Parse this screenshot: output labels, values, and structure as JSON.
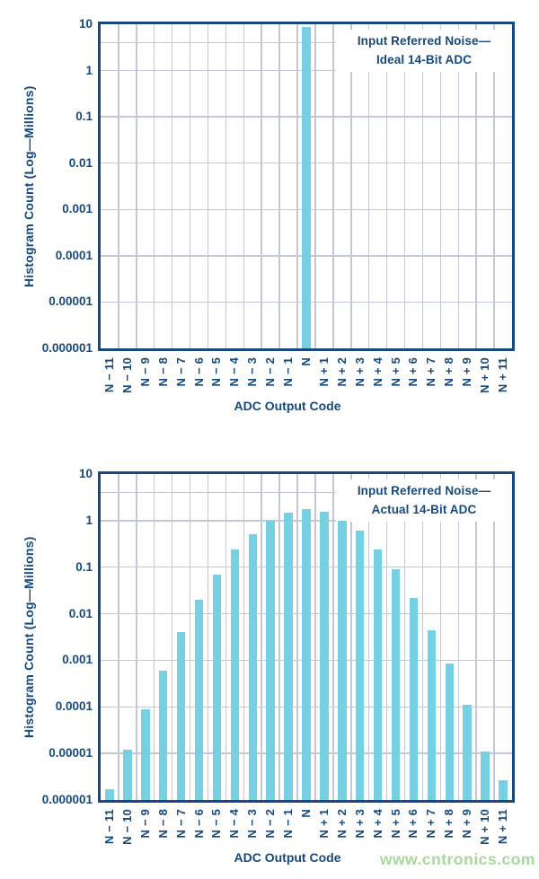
{
  "watermark": {
    "text": "www.cntronics.com",
    "color": "#a9d89b"
  },
  "colors": {
    "axis_navy": "#17497d",
    "grid": "#c3c7d9",
    "bar_cyan": "#76d0e1"
  },
  "chart_data": [
    {
      "type": "bar",
      "title_line1": "Input Referred Noise—",
      "title_line2": "Ideal 14-Bit ADC",
      "xlabel": "ADC Output Code",
      "ylabel": "Histogram Count (Log—Millions)",
      "yscale": "log",
      "ylim": [
        1e-06,
        10
      ],
      "ytick_labels": [
        "10",
        "1",
        "0.1",
        "0.01",
        "0.001",
        "0.0001",
        "0.00001",
        "0.000001"
      ],
      "extra_gridline_value": 4,
      "grid": "on",
      "legend": "none",
      "categories": [
        "N − 11",
        "N − 10",
        "N − 9",
        "N − 8",
        "N − 7",
        "N − 6",
        "N − 5",
        "N − 4",
        "N − 3",
        "N − 2",
        "N − 1",
        "N",
        "N + 1",
        "N + 2",
        "N + 3",
        "N + 4",
        "N + 5",
        "N + 6",
        "N + 7",
        "N + 8",
        "N + 9",
        "N + 10",
        "N + 11"
      ],
      "values": [
        0,
        0,
        0,
        0,
        0,
        0,
        0,
        0,
        0,
        0,
        0,
        8.8,
        0,
        0,
        0,
        0,
        0,
        0,
        0,
        0,
        0,
        0,
        0
      ]
    },
    {
      "type": "bar",
      "title_line1": "Input Referred Noise—",
      "title_line2": "Actual 14-Bit ADC",
      "xlabel": "ADC Output Code",
      "ylabel": "Histogram Count (Log—Millions)",
      "yscale": "log",
      "ylim": [
        1e-06,
        10
      ],
      "ytick_labels": [
        "10",
        "1",
        "0.1",
        "0.01",
        "0.001",
        "0.0001",
        "0.00001",
        "0.000001"
      ],
      "extra_gridline_value": 4,
      "grid": "on",
      "legend": "none",
      "categories": [
        "N − 11",
        "N − 10",
        "N − 9",
        "N − 8",
        "N − 7",
        "N − 6",
        "N − 5",
        "N − 4",
        "N − 3",
        "N − 2",
        "N − 1",
        "N",
        "N + 1",
        "N + 2",
        "N + 3",
        "N + 4",
        "N + 5",
        "N + 6",
        "N + 7",
        "N + 8",
        "N + 9",
        "N + 10",
        "N + 11"
      ],
      "values": [
        1.7e-06,
        1.2e-05,
        9e-05,
        0.0006,
        0.004,
        0.02,
        0.07,
        0.24,
        0.5,
        1.0,
        1.5,
        1.8,
        1.55,
        1.0,
        0.6,
        0.24,
        0.09,
        0.022,
        0.0045,
        0.00085,
        0.00011,
        1.1e-05,
        2.6e-06
      ]
    }
  ]
}
